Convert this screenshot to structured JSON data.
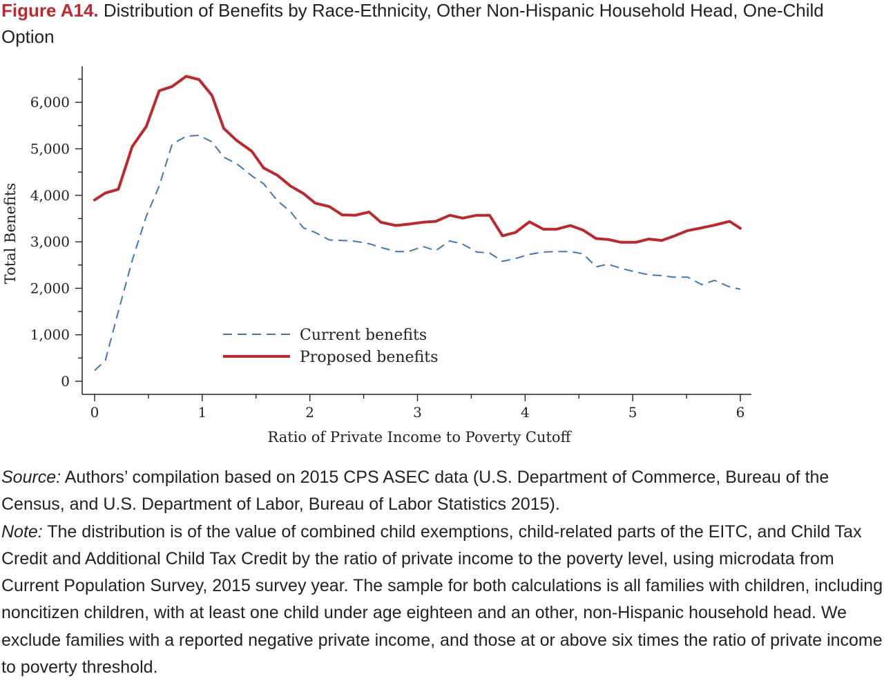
{
  "figure": {
    "label": "Figure A14.",
    "title": "Distribution of Benefits by Race-Ethnicity, Other Non-Hispanic Household Head, One-Child Option"
  },
  "chart_data": {
    "type": "line",
    "xlabel": "Ratio of Private Income to Poverty Cutoff",
    "ylabel": "Total Benefits",
    "xlim": [
      0,
      6
    ],
    "ylim": [
      0,
      6800
    ],
    "x_ticks": [
      0,
      1,
      2,
      3,
      4,
      5,
      6
    ],
    "x_tick_labels": [
      "0",
      "1",
      "2",
      "3",
      "4",
      "5",
      "6"
    ],
    "y_ticks": [
      0,
      1000,
      2000,
      3000,
      4000,
      5000,
      6000
    ],
    "y_tick_labels": [
      "0",
      "1,000",
      "2,000",
      "3,000",
      "4,000",
      "5,000",
      "6,000"
    ],
    "grid": false,
    "legend_position": "lower-center",
    "series": [
      {
        "name": "Current benefits",
        "style": "dashed",
        "color": "#3a78bd",
        "points": [
          [
            0,
            230
          ],
          [
            0.1,
            450
          ],
          [
            0.22,
            1500
          ],
          [
            0.35,
            2600
          ],
          [
            0.48,
            3550
          ],
          [
            0.6,
            4200
          ],
          [
            0.72,
            5100
          ],
          [
            0.85,
            5270
          ],
          [
            0.97,
            5290
          ],
          [
            1.09,
            5150
          ],
          [
            1.2,
            4820
          ],
          [
            1.32,
            4680
          ],
          [
            1.46,
            4420
          ],
          [
            1.57,
            4250
          ],
          [
            1.7,
            3880
          ],
          [
            1.82,
            3650
          ],
          [
            1.94,
            3300
          ],
          [
            2.05,
            3200
          ],
          [
            2.18,
            3040
          ],
          [
            2.3,
            3030
          ],
          [
            2.42,
            3010
          ],
          [
            2.55,
            2960
          ],
          [
            2.66,
            2880
          ],
          [
            2.8,
            2790
          ],
          [
            2.92,
            2790
          ],
          [
            3.05,
            2900
          ],
          [
            3.17,
            2810
          ],
          [
            3.3,
            3020
          ],
          [
            3.42,
            2950
          ],
          [
            3.55,
            2780
          ],
          [
            3.67,
            2760
          ],
          [
            3.79,
            2580
          ],
          [
            3.91,
            2640
          ],
          [
            4.04,
            2730
          ],
          [
            4.17,
            2780
          ],
          [
            4.29,
            2790
          ],
          [
            4.42,
            2790
          ],
          [
            4.54,
            2740
          ],
          [
            4.66,
            2460
          ],
          [
            4.77,
            2520
          ],
          [
            4.89,
            2430
          ],
          [
            5.03,
            2350
          ],
          [
            5.15,
            2290
          ],
          [
            5.27,
            2270
          ],
          [
            5.38,
            2240
          ],
          [
            5.51,
            2240
          ],
          [
            5.64,
            2080
          ],
          [
            5.76,
            2170
          ],
          [
            5.9,
            2030
          ],
          [
            6,
            1980
          ]
        ]
      },
      {
        "name": "Proposed benefits",
        "style": "solid",
        "color": "#c0272d",
        "points": [
          [
            0,
            3900
          ],
          [
            0.1,
            4050
          ],
          [
            0.22,
            4130
          ],
          [
            0.35,
            5050
          ],
          [
            0.48,
            5480
          ],
          [
            0.6,
            6250
          ],
          [
            0.72,
            6340
          ],
          [
            0.85,
            6560
          ],
          [
            0.97,
            6490
          ],
          [
            1.09,
            6150
          ],
          [
            1.2,
            5440
          ],
          [
            1.32,
            5180
          ],
          [
            1.46,
            4950
          ],
          [
            1.57,
            4590
          ],
          [
            1.7,
            4430
          ],
          [
            1.82,
            4200
          ],
          [
            1.94,
            4040
          ],
          [
            2.05,
            3830
          ],
          [
            2.18,
            3760
          ],
          [
            2.3,
            3580
          ],
          [
            2.42,
            3570
          ],
          [
            2.55,
            3640
          ],
          [
            2.66,
            3420
          ],
          [
            2.8,
            3350
          ],
          [
            2.92,
            3380
          ],
          [
            3.05,
            3420
          ],
          [
            3.17,
            3440
          ],
          [
            3.3,
            3570
          ],
          [
            3.42,
            3510
          ],
          [
            3.55,
            3570
          ],
          [
            3.67,
            3570
          ],
          [
            3.79,
            3130
          ],
          [
            3.91,
            3200
          ],
          [
            4.04,
            3430
          ],
          [
            4.17,
            3270
          ],
          [
            4.29,
            3270
          ],
          [
            4.42,
            3350
          ],
          [
            4.54,
            3250
          ],
          [
            4.66,
            3070
          ],
          [
            4.77,
            3050
          ],
          [
            4.89,
            2990
          ],
          [
            5.03,
            2990
          ],
          [
            5.15,
            3060
          ],
          [
            5.27,
            3030
          ],
          [
            5.38,
            3120
          ],
          [
            5.51,
            3240
          ],
          [
            5.64,
            3300
          ],
          [
            5.76,
            3360
          ],
          [
            5.9,
            3440
          ],
          [
            6,
            3290
          ]
        ]
      }
    ]
  },
  "caption": {
    "source_label": "Source:",
    "source_text": " Authors’ compilation based on 2015 CPS ASEC data (U.S. Department of Commerce, Bureau of the Census, and U.S. Department of Labor, Bureau of Labor Statistics 2015).",
    "note_label": "Note:",
    "note_text": " The distribution is of the value of combined child exemptions, child-related parts of the EITC, and Child Tax Credit and Additional Child Tax Credit by the ratio of private income to the poverty level, using microdata from Current Population Survey, 2015 survey year. The sample for both calculations is all families with children, including noncitizen children, with at least one child under age eighteen and an other, non-Hispanic household head. We exclude families with a reported negative private income, and those at or above six times the ratio of private income to poverty threshold."
  }
}
